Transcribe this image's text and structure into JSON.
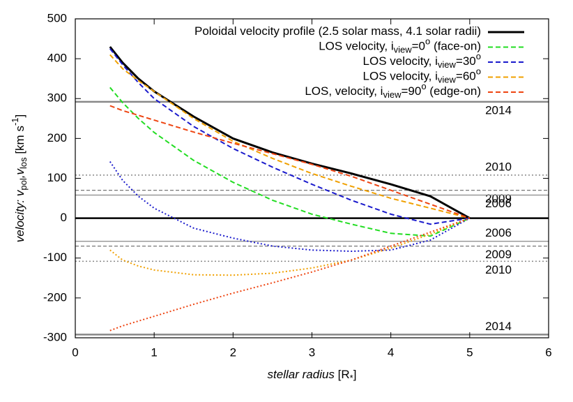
{
  "chart_data": {
    "type": "line",
    "x": [
      0.44,
      0.6,
      0.8,
      1,
      1.5,
      2,
      2.5,
      3,
      3.5,
      4,
      4.5,
      5
    ],
    "xlim": [
      0,
      6
    ],
    "xticks": [
      0,
      1,
      2,
      3,
      4,
      5,
      6
    ],
    "ylim": [
      -300,
      500
    ],
    "yticks": [
      -300,
      -200,
      -100,
      0,
      100,
      200,
      300,
      400,
      500
    ],
    "xlabel": [
      {
        "text": "stellar radius",
        "style": "italic"
      },
      {
        "text": " [R"
      },
      {
        "text": "*",
        "script": "sub"
      },
      {
        "text": "]"
      }
    ],
    "ylabel": [
      {
        "text": "velocity: v",
        "style": "italic"
      },
      {
        "text": "pol",
        "script": "sub"
      },
      {
        "text": ",v",
        "style": "italic"
      },
      {
        "text": "los",
        "script": "sub"
      },
      {
        "text": " [km s"
      },
      {
        "text": "-1",
        "script": "sup"
      },
      {
        "text": "]"
      }
    ],
    "legend": "top-right",
    "series": [
      {
        "name": [
          {
            "text": "Poloidal velocity profile (2.5 solar mass, 4.1 solar radii)"
          }
        ],
        "color": "#000000",
        "dash": "solid",
        "values": [
          430,
          390,
          350,
          318,
          255,
          200,
          165,
          137,
          112,
          85,
          55,
          0
        ]
      },
      {
        "name": [
          {
            "text": "LOS velocity, i"
          },
          {
            "text": "view",
            "script": "sub"
          },
          {
            "text": "=0"
          },
          {
            "text": "o",
            "script": "sup"
          },
          {
            "text": " (face-on)"
          }
        ],
        "color": "#22dd22",
        "dash": "dashed",
        "values": [
          328,
          290,
          250,
          215,
          145,
          90,
          45,
          10,
          -15,
          -38,
          -45,
          0
        ]
      },
      {
        "name": [
          {
            "text": "LOS velocity, i"
          },
          {
            "text": "view",
            "script": "sub"
          },
          {
            "text": "=30"
          },
          {
            "text": "o",
            "script": "sup"
          }
        ],
        "color": "#1a1acc",
        "dash": "dashed",
        "values": [
          425,
          385,
          340,
          300,
          230,
          175,
          128,
          85,
          45,
          10,
          -15,
          0
        ],
        "values_lower": [
          142,
          95,
          55,
          25,
          -25,
          -50,
          -70,
          -80,
          -83,
          -80,
          -55,
          0
        ]
      },
      {
        "name": [
          {
            "text": "LOS velocity, i"
          },
          {
            "text": "view",
            "script": "sub"
          },
          {
            "text": "=60"
          },
          {
            "text": "o",
            "script": "sup"
          }
        ],
        "color": "#f0a000",
        "dash": "dashed",
        "values": [
          410,
          375,
          345,
          318,
          250,
          193,
          150,
          112,
          80,
          50,
          25,
          0
        ],
        "values_lower": [
          -80,
          -105,
          -120,
          -130,
          -142,
          -143,
          -138,
          -125,
          -105,
          -75,
          -40,
          0
        ]
      },
      {
        "name": [
          {
            "text": "LOS, velocity, i"
          },
          {
            "text": "view",
            "script": "sub"
          },
          {
            "text": "=90"
          },
          {
            "text": "o",
            "script": "sup"
          },
          {
            "text": " (edge-on)"
          }
        ],
        "color": "#ee4411",
        "dash": "dashed",
        "values": [
          282,
          270,
          258,
          246,
          216,
          188,
          162,
          135,
          105,
          70,
          35,
          0
        ],
        "values_lower": [
          -282,
          -270,
          -258,
          -246,
          -216,
          -188,
          -162,
          -135,
          -105,
          -70,
          -35,
          0
        ]
      }
    ],
    "reference_lines": [
      {
        "label": "2014",
        "value": 292,
        "style": "solid",
        "label_pos": "below"
      },
      {
        "label": "2010",
        "value": 108,
        "style": "dotted",
        "label_pos": "above"
      },
      {
        "label": "2009",
        "value": 70,
        "style": "dashed",
        "label_pos": "below"
      },
      {
        "label": "2006",
        "value": 58,
        "style": "thin",
        "label_pos": "below"
      },
      {
        "label": "2006",
        "value": -58,
        "style": "thin",
        "label_pos": "above"
      },
      {
        "label": "2009",
        "value": -70,
        "style": "dashed",
        "label_pos": "below"
      },
      {
        "label": "2010",
        "value": -108,
        "style": "dotted",
        "label_pos": "below"
      },
      {
        "label": "2014",
        "value": -292,
        "style": "solid",
        "label_pos": "above"
      }
    ]
  }
}
